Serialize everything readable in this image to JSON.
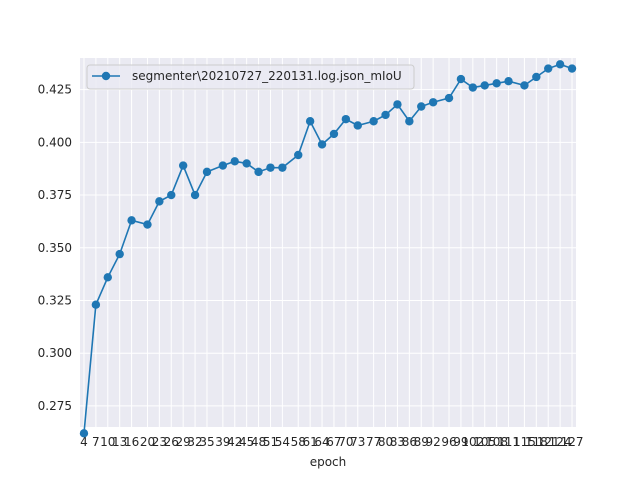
{
  "chart_data": {
    "type": "line",
    "title": "",
    "xlabel": "epoch",
    "ylabel": "",
    "x": [
      4,
      7,
      10,
      13,
      16,
      20,
      23,
      26,
      29,
      32,
      35,
      39,
      42,
      45,
      48,
      51,
      54,
      58,
      61,
      64,
      67,
      70,
      73,
      77,
      80,
      83,
      86,
      89,
      92,
      96,
      99,
      102,
      105,
      108,
      111,
      115,
      118,
      121,
      124,
      127
    ],
    "x_tick_labels": [
      "4",
      "7",
      "10",
      "13",
      "16",
      "20",
      "23",
      "26",
      "29",
      "32",
      "35",
      "39",
      "42",
      "45",
      "48",
      "51",
      "54",
      "58",
      "61",
      "64",
      "67",
      "70",
      "73",
      "77",
      "80",
      "83",
      "86",
      "89",
      "92",
      "96",
      "99",
      "102",
      "105",
      "108",
      "111",
      "115",
      "118",
      "121",
      "124",
      "127"
    ],
    "ylim": [
      0.265,
      0.44
    ],
    "y_ticks": [
      0.275,
      0.3,
      0.325,
      0.35,
      0.375,
      0.4,
      0.425
    ],
    "y_tick_labels": [
      "0.275",
      "0.300",
      "0.325",
      "0.350",
      "0.375",
      "0.400",
      "0.425"
    ],
    "grid": true,
    "legend_position": "top-left",
    "series": [
      {
        "name": "segmenter\\20210727_220131.log.json_mIoU",
        "color": "#1f77b4",
        "values": [
          0.262,
          0.323,
          0.336,
          0.347,
          0.363,
          0.361,
          0.372,
          0.375,
          0.389,
          0.375,
          0.386,
          0.389,
          0.391,
          0.39,
          0.386,
          0.388,
          0.388,
          0.394,
          0.41,
          0.399,
          0.404,
          0.411,
          0.408,
          0.41,
          0.413,
          0.418,
          0.41,
          0.417,
          0.419,
          0.421,
          0.43,
          0.426,
          0.427,
          0.428,
          0.429,
          0.427,
          0.431,
          0.435,
          0.437,
          0.435
        ]
      }
    ]
  },
  "colors": {
    "plot_background": "#eaeaf2",
    "grid": "#ffffff"
  }
}
